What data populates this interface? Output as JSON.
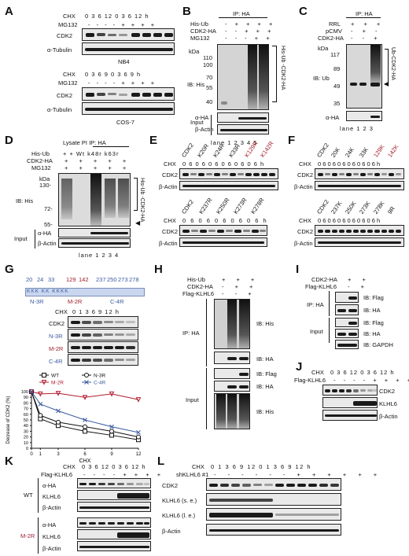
{
  "panels": {
    "A": {
      "label": "A",
      "top": {
        "cond_h": "CHX",
        "cond_row1": "0  3  6  12  0  3  6  12 h",
        "mg_label": "MG132",
        "mg_row": "- - - - + + + +",
        "rows": [
          "CDK2",
          "α-Tubulin"
        ],
        "cell": "NB4"
      },
      "bottom": {
        "cond_h": "CHX",
        "cond_row1": "0  3  6  9  0  3  6  9 h",
        "mg_label": "MG132",
        "mg_row": "- - - - + + + +",
        "rows": [
          "CDK2",
          "α-Tubulin"
        ],
        "cell": "COS-7"
      }
    },
    "B": {
      "label": "B",
      "ip": "IP: HA",
      "conds": [
        {
          "name": "His-Ub",
          "vals": "- + + + +"
        },
        {
          "name": "CDK2-HA",
          "vals": "- - + + +"
        },
        {
          "name": "MG132",
          "vals": "- - - + +"
        }
      ],
      "kda": "kDa",
      "markers": [
        "110",
        "100",
        "70",
        "55",
        "40"
      ],
      "ib": "IB: His",
      "bracket": "His-Ub -CDK2-HA",
      "input": "Input",
      "input_rows": [
        "α-HA",
        "β-Actin"
      ],
      "lanes": "lane 1   2   3   4   5"
    },
    "C": {
      "label": "C",
      "ip": "IP: HA",
      "conds": [
        {
          "name": "RRL",
          "vals": "+ + +"
        },
        {
          "name": "pCMV",
          "vals": "- + -"
        },
        {
          "name": "CDK2-HA",
          "vals": "- - +"
        }
      ],
      "kda": "kDa",
      "markers": [
        "117",
        "89",
        "49",
        "35"
      ],
      "ib": "IB: Ub",
      "bracket": "Ub-CDK2-HA",
      "row2": "α-HA",
      "lanes": "lane 1  2  3"
    },
    "D": {
      "label": "D",
      "header": "Lysate PI  IP: HA",
      "conds": [
        {
          "name": "His-Ub",
          "vals": "+ + Wt k48r k63r"
        },
        {
          "name": "CDK2-HA",
          "vals": "+ + + + +"
        },
        {
          "name": "MG132",
          "vals": "+ + + + +"
        }
      ],
      "kda": "kDa",
      "markers": [
        "130-",
        "72-",
        "55-"
      ],
      "ib": "IB: His",
      "bracket": "His-Ub -CDK2-HA",
      "input": "Input",
      "input_rows": [
        "α-HA",
        "β-Actin"
      ],
      "lanes": "lane 1   2   3   4"
    },
    "E": {
      "label": "E",
      "top_cols": [
        "CDK2",
        "K20R",
        "K24R",
        "K33R",
        "K129R",
        "K142R"
      ],
      "bottom_cols": [
        "CDK2",
        "K237R",
        "K250R",
        "K273R",
        "K278R"
      ],
      "chx": "CHX",
      "chx_top": "0 6  0 6  0 6  0 6  0 6  0 6 h",
      "chx_bottom": "0 6  0 6  0 6  0 6  0 6 h",
      "rows": [
        "CDK2",
        "β-Actin"
      ]
    },
    "F": {
      "label": "F",
      "top_cols": [
        "CDK2",
        "20K",
        "24K",
        "33K",
        "129K",
        "142K"
      ],
      "bottom_cols": [
        "CDK2",
        "237K",
        "250K",
        "273K",
        "278K",
        "9R"
      ],
      "chx": "CHX",
      "chx_top": "0 6  0 6  0 6  0 6  0 6  0 6 h",
      "chx_bottom": "0 6  0 6  0 6  0 6  0 6  0 6 h",
      "rows": [
        "CDK2",
        "β-Actin"
      ]
    },
    "G": {
      "label": "G",
      "sites": [
        "20",
        "24",
        "33",
        "129",
        "142",
        "237",
        "250",
        "273",
        "278"
      ],
      "groups": [
        "N-3R",
        "M-2R",
        "C-4R"
      ],
      "kk": "KKK  KK  KKKK",
      "chx": "CHX",
      "chx_vals": "0  1  3  6  9  12 h",
      "rows": [
        "CDK2",
        "N-3R",
        "M-2R",
        "C-4R"
      ],
      "chart_ylabel": "Decrease of CDK2 (%)",
      "chart_xlabel": "CHX",
      "colors": {
        "wt": "#111111",
        "n3r": "#111111",
        "m2r": "#b31b2c",
        "c4r": "#3a5ba0"
      }
    },
    "H": {
      "label": "H",
      "conds": [
        {
          "name": "His-Ub",
          "vals": "+ + +"
        },
        {
          "name": "CDK2-HA",
          "vals": "- + +"
        },
        {
          "name": "Flag-KLHL6",
          "vals": "- - +"
        }
      ],
      "ip": "IP: HA",
      "ibs_ip": [
        "IB: His",
        "IB: HA"
      ],
      "input": "Input",
      "ibs_input": [
        "IB: Flag",
        "IB: HA",
        "IB: His"
      ]
    },
    "I": {
      "label": "I",
      "conds": [
        {
          "name": "CDK2-HA",
          "vals": "+ +"
        },
        {
          "name": "Flag-KLHL6",
          "vals": "- +"
        }
      ],
      "ip": "IP: HA",
      "input": "Input",
      "ibs": [
        "IB: Flag",
        "IB: HA",
        "IB: Flag",
        "IB: HA",
        "IB: GAPDH"
      ]
    },
    "J": {
      "label": "J",
      "chx": "CHX",
      "chx_vals": "0  3  6  12  0  3  6  12 h",
      "flag": "Flag-KLHL6",
      "flag_vals": "- - - - + + + +",
      "rows": [
        "CDK2",
        "KLHL6",
        "β-Actin"
      ]
    },
    "K": {
      "label": "K",
      "chx": "CHX",
      "chx_vals": "0  3  6  12  0  3  6  12 h",
      "flag": "Flag-KLHL6",
      "flag_vals": "- - - - + + + +",
      "groups": [
        "WT",
        "M-2R"
      ],
      "rows": [
        "α-HA",
        "KLHL6",
        "β-Actin"
      ]
    },
    "L": {
      "label": "L",
      "chx": "CHX",
      "chx_vals": "0  1  3  6  9  12  0  1  3  6  9  12 h",
      "sh": "shKLHL6 #1",
      "sh_vals": "- - - - - - + + + + + +",
      "rows": [
        "CDK2",
        "KLHL6 (s. e.)",
        "KLHL6 (l. e.)",
        "β-Actin"
      ]
    }
  },
  "chart_data": {
    "type": "line",
    "title": "",
    "xlabel": "CHX",
    "ylabel": "Decrease of CDK2 (%)",
    "x": [
      0,
      1,
      3,
      6,
      9,
      12
    ],
    "xlim": [
      0,
      12
    ],
    "ylim": [
      0,
      100
    ],
    "yticks": [
      0,
      10,
      20,
      30,
      40,
      50,
      60,
      70,
      80,
      90,
      100
    ],
    "xticks": [
      0,
      1,
      3,
      6,
      9,
      12
    ],
    "legend_position": "top",
    "series": [
      {
        "name": "WT",
        "values": [
          100,
          52,
          40,
          30,
          23,
          15
        ]
      },
      {
        "name": "N-3R",
        "values": [
          100,
          58,
          46,
          38,
          30,
          20
        ]
      },
      {
        "name": "M-2R",
        "values": [
          100,
          96,
          97,
          90,
          96,
          86
        ]
      },
      {
        "name": "C-4R",
        "values": [
          100,
          78,
          66,
          50,
          38,
          28
        ]
      }
    ]
  }
}
